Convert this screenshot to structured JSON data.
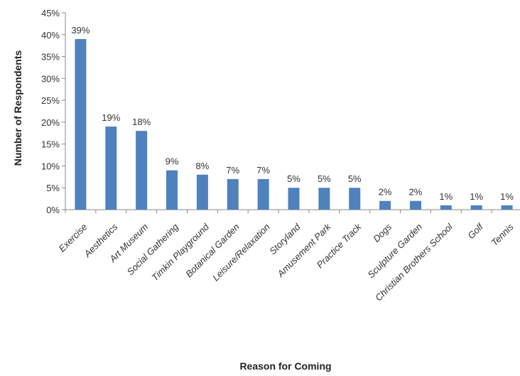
{
  "chart_data": {
    "type": "bar",
    "xlabel": "Reason for Coming",
    "ylabel": "Number of Respondents",
    "ylim": [
      0,
      45
    ],
    "yticks": [
      "0%",
      "5%",
      "10%",
      "15%",
      "20%",
      "25%",
      "30%",
      "35%",
      "40%",
      "45%"
    ],
    "grid": false,
    "legend": "none",
    "bar_color": "#4F81BD",
    "categories": [
      "Exercise",
      "Aesthetics",
      "Art Museum",
      "Social Gathering",
      "Timkin Playground",
      "Botanical Garden",
      "Leisure/Relaxation",
      "Storyland",
      "Amusement Park",
      "Practice Track",
      "Dogs",
      "Sculpture Garden",
      "Christian Brothers School",
      "Golf",
      "Tennis"
    ],
    "values": [
      39,
      19,
      18,
      9,
      8,
      7,
      7,
      5,
      5,
      5,
      2,
      2,
      1,
      1,
      1
    ],
    "data_labels": [
      "39%",
      "19%",
      "18%",
      "9%",
      "8%",
      "7%",
      "7%",
      "5%",
      "5%",
      "5%",
      "2%",
      "2%",
      "1%",
      "1%",
      "1%"
    ]
  }
}
